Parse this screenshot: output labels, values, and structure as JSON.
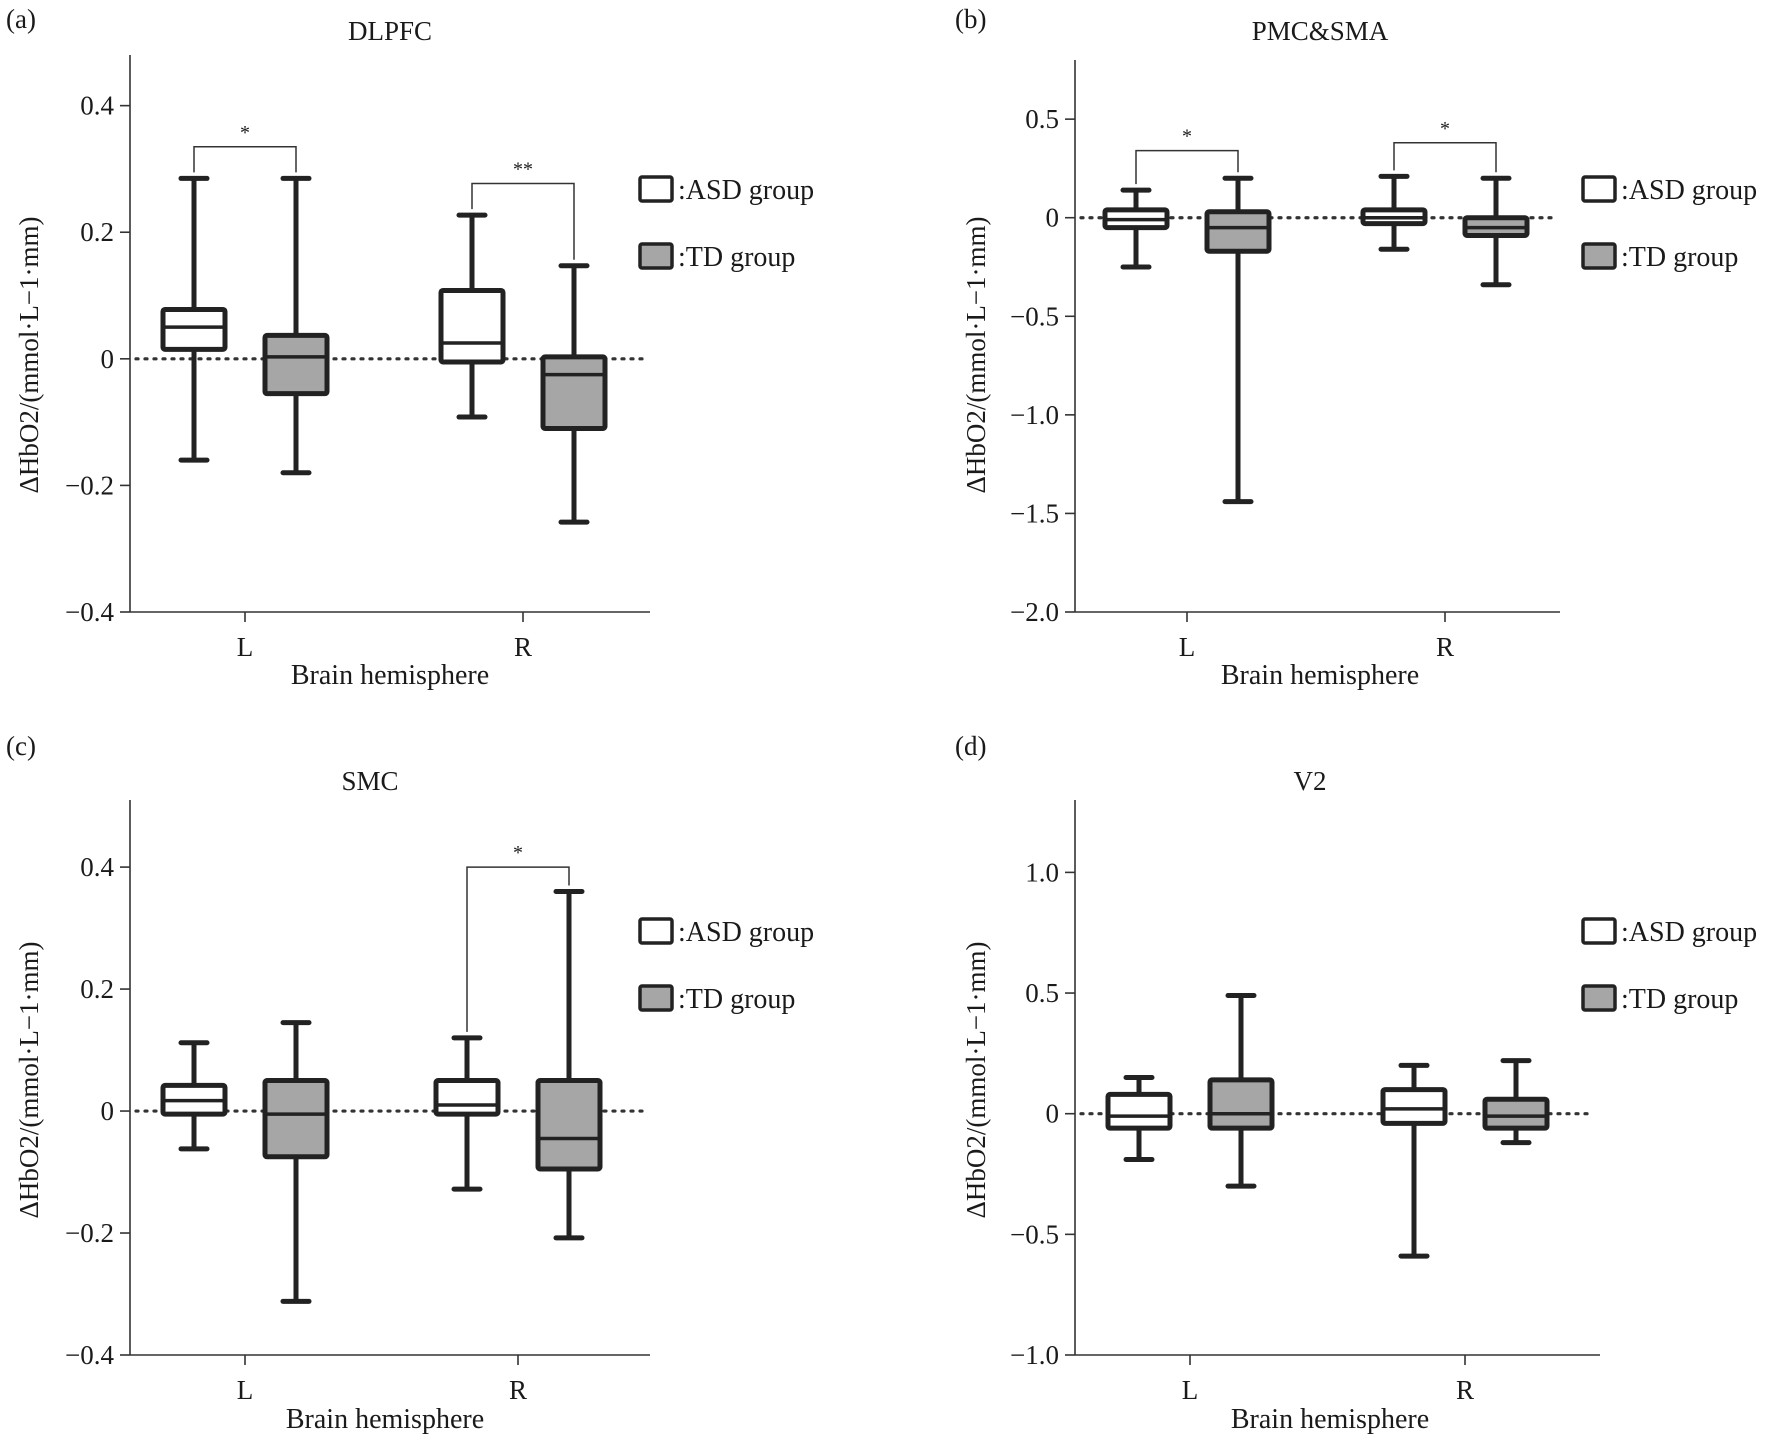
{
  "chart_data": [
    {
      "type": "box",
      "panel_label": "(a)",
      "title": "DLPFC",
      "xlabel": "Brain hemisphere",
      "ylabel": "ΔHbO2/(mmol·L−1·mm)",
      "ylim": [
        -0.4,
        0.48
      ],
      "yticks": [
        -0.4,
        -0.2,
        0,
        0.2,
        0.4
      ],
      "ytick_labels": [
        "−0.4",
        "−0.2",
        "0",
        "0.2",
        "0.4"
      ],
      "categories": [
        "L",
        "R"
      ],
      "zero_line": true,
      "series": [
        {
          "name": ":ASD group",
          "color": "#ffffff",
          "boxes": [
            {
              "min": -0.16,
              "q1": 0.015,
              "median": 0.05,
              "q3": 0.078,
              "max": 0.285
            },
            {
              "min": -0.092,
              "q1": -0.005,
              "median": 0.025,
              "q3": 0.108,
              "max": 0.227
            }
          ]
        },
        {
          "name": ":TD group",
          "color": "#a6a6a6",
          "boxes": [
            {
              "min": -0.18,
              "q1": -0.055,
              "median": 0.003,
              "q3": 0.037,
              "max": 0.285
            },
            {
              "min": -0.258,
              "q1": -0.11,
              "median": -0.025,
              "q3": 0.003,
              "max": 0.147
            }
          ]
        }
      ],
      "significance": [
        {
          "category": "L",
          "label": "*",
          "y": 0.335
        },
        {
          "category": "R",
          "label": "**",
          "y": 0.277
        }
      ]
    },
    {
      "type": "box",
      "panel_label": "(b)",
      "title": "PMC&SMA",
      "xlabel": "Brain hemisphere",
      "ylabel": "ΔHbO2/(mmol·L−1·mm)",
      "ylim": [
        -2.0,
        0.8
      ],
      "yticks": [
        -2.0,
        -1.5,
        -1.0,
        -0.5,
        0,
        0.5
      ],
      "ytick_labels": [
        "−2.0",
        "−1.5",
        "−1.0",
        "−0.5",
        "0",
        "0.5"
      ],
      "categories": [
        "L",
        "R"
      ],
      "zero_line": true,
      "series": [
        {
          "name": ":ASD group",
          "color": "#ffffff",
          "boxes": [
            {
              "min": -0.25,
              "q1": -0.05,
              "median": -0.01,
              "q3": 0.04,
              "max": 0.14
            },
            {
              "min": -0.16,
              "q1": -0.03,
              "median": 0.0,
              "q3": 0.04,
              "max": 0.21
            }
          ]
        },
        {
          "name": ":TD group",
          "color": "#a6a6a6",
          "boxes": [
            {
              "min": -1.44,
              "q1": -0.17,
              "median": -0.05,
              "q3": 0.03,
              "max": 0.2
            },
            {
              "min": -0.34,
              "q1": -0.09,
              "median": -0.05,
              "q3": 0.0,
              "max": 0.2
            }
          ]
        }
      ],
      "significance": [
        {
          "category": "L",
          "label": "*",
          "y": 0.34
        },
        {
          "category": "R",
          "label": "*",
          "y": 0.38
        }
      ]
    },
    {
      "type": "box",
      "panel_label": "(c)",
      "title": "SMC",
      "xlabel": "Brain hemisphere",
      "ylabel": "ΔHbO2/(mmol·L−1·mm)",
      "ylim": [
        -0.4,
        0.51
      ],
      "yticks": [
        -0.4,
        -0.2,
        0,
        0.2,
        0.4
      ],
      "ytick_labels": [
        "−0.4",
        "−0.2",
        "0",
        "0.2",
        "0.4"
      ],
      "categories": [
        "L",
        "R"
      ],
      "zero_line": true,
      "series": [
        {
          "name": ":ASD group",
          "color": "#ffffff",
          "boxes": [
            {
              "min": -0.062,
              "q1": -0.005,
              "median": 0.017,
              "q3": 0.042,
              "max": 0.112
            },
            {
              "min": -0.128,
              "q1": -0.005,
              "median": 0.01,
              "q3": 0.05,
              "max": 0.12
            }
          ]
        },
        {
          "name": ":TD group",
          "color": "#a6a6a6",
          "boxes": [
            {
              "min": -0.312,
              "q1": -0.075,
              "median": -0.005,
              "q3": 0.05,
              "max": 0.145
            },
            {
              "min": -0.208,
              "q1": -0.095,
              "median": -0.045,
              "q3": 0.05,
              "max": 0.36
            }
          ]
        }
      ],
      "significance": [
        {
          "category": "R",
          "label": "*",
          "y": 0.4
        }
      ]
    },
    {
      "type": "box",
      "panel_label": "(d)",
      "title": "V2",
      "xlabel": "Brain hemisphere",
      "ylabel": "ΔHbO2/(mmol·L−1·mm)",
      "ylim": [
        -1.0,
        1.3
      ],
      "yticks": [
        -1.0,
        -0.5,
        0,
        0.5,
        1.0
      ],
      "ytick_labels": [
        "−1.0",
        "−0.5",
        "0",
        "0.5",
        "1.0"
      ],
      "categories": [
        "L",
        "R"
      ],
      "zero_line": true,
      "series": [
        {
          "name": ":ASD group",
          "color": "#ffffff",
          "boxes": [
            {
              "min": -0.19,
              "q1": -0.06,
              "median": -0.01,
              "q3": 0.08,
              "max": 0.15
            },
            {
              "min": -0.59,
              "q1": -0.04,
              "median": 0.02,
              "q3": 0.1,
              "max": 0.2
            }
          ]
        },
        {
          "name": ":TD group",
          "color": "#a6a6a6",
          "boxes": [
            {
              "min": -0.3,
              "q1": -0.06,
              "median": 0.0,
              "q3": 0.14,
              "max": 0.49
            },
            {
              "min": -0.12,
              "q1": -0.06,
              "median": -0.01,
              "q3": 0.06,
              "max": 0.22
            }
          ]
        }
      ],
      "significance": []
    }
  ]
}
